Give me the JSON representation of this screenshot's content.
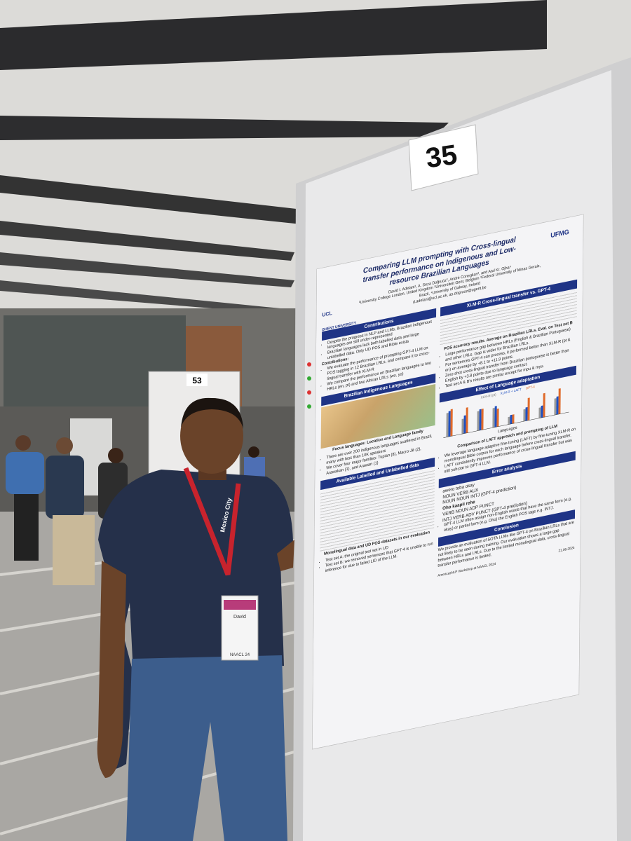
{
  "board_number": "35",
  "back_board_number": "53",
  "lanyard_text": "Mexico City",
  "badge": {
    "name": "David",
    "event": "NAACL 24"
  },
  "poster": {
    "title": "Comparing LLM prompting with Cross-lingual transfer performance on Indigenous and Low-resource Brazilian Languages",
    "authors": "David I. Adelani¹, A. Seza Doğruöz², André Coneglian³, and Atul Kr. Ojha⁴",
    "affiliations": "¹University College London, United Kingdom ²Universiteit Gent, Belgium ³Federal University of Minas Gerais, Brazil, ⁴University of Galway, Ireland",
    "emails": "d.adelani@ucl.ac.uk, as.dogruoz@ugent.be",
    "logos": [
      "UCL",
      "GHENT UNIVERSITY",
      "UFMG"
    ],
    "left_sections": [
      {
        "heading": "Contributions",
        "items": [
          "Despite the progress in NLP and LLMs, Brazilian indigenous languages are still under-represented",
          "Brazilian languages lack both labelled data and large unlabelled data. Only UD POS and Bible exists",
          "Contributions:",
          "We evaluate the performance of prompting GPT-4 LLM on POS tagging in 12 Brazilian LRLs, and compare it to cross-lingual transfer with XLM-R",
          "We compare the performance on Brazilian languages to two HRLs (en, pt) and two African LRLs (wo, yo)"
        ]
      },
      {
        "heading": "Brazilian Indigenous Languages",
        "caption": "Focus languages: Location and Language family",
        "items": [
          "There are over 200 indigenous languages scattered in Brazil, many with less than 10K speakers",
          "We cover four major families: Tupian (8), Macro-Jê (2), Arawakan (1), and Arawan (1)"
        ]
      },
      {
        "heading": "Available Labelled and Unlabelled data",
        "caption": "Monolingual data and UD POS datasets in our evaluation",
        "items": [
          "Test set A: the original test set in UD",
          "Test set B: we removed sentences that GPT-4 is unable to run inference for due to failed LID of the LLM."
        ]
      }
    ],
    "right_sections": [
      {
        "heading": "XLM-R Cross-lingual transfer vs. GPT-4",
        "caption": "POS accuracy results. Average on Brazilian LRLs. Eval. on Test set B",
        "items": [
          "Large performance gap between HRLs (English & Brazilian Portuguese) and other LRLs. Gap is wider for Brazilian LRLs.",
          "For sentences GPT-4 can process, it performed better than XLM-R (pt & en) on average by +8.1 to +11.9 points.",
          "Zero-shot cross-lingual transfer from Brazilian portuguese is better than English by +3.8 points due to language contact.",
          "Test set A & B's results are similar except for mpu & myu."
        ]
      },
      {
        "heading": "Effect of Language adaptation",
        "legend": [
          "XLM-R (pt)",
          "XLM-R + LAFT",
          "GPT-4"
        ],
        "axis_label": "Languages",
        "caption": "Comparison of LAFT approach and prompting of LLM",
        "items": [
          "We leverage language adaptive fine-tuning (LAFT) by fine-tuning XLM-R on monolingual Bible corpus for each language before cross-lingual transfer.",
          "LAFT consistently improves performance of cross-lingual transfer but was still sub-par to GPT-4 LLM."
        ]
      },
      {
        "heading": "Error analysis",
        "examples": [
          "awero toba okay",
          "NOUN VERB AUX",
          "NOUN NOUN INTJ (GPT-4 prediction)",
          "Oho kaapii rehe",
          "VERB NOUN ADP PUNCT",
          "INTJ VERB ADV PUNCT (GPT-4 prediction)"
        ],
        "items": [
          "GPT-4 LLM often assign non-English words that have the same form (e.g. okay) or partial form (e.g. Oho) the English POS tags e.g. INTJ."
        ]
      },
      {
        "heading": "Conclusion",
        "items": [
          "We provide an evaluation of SOTA LLMs like GPT-4 on Brazilian LRLs that are not likely to be seen during training. Our evaluation shows a large gap between HRLs and LRLs. Due to the limited monolingual data, cross-lingual transfer performance is limited."
        ]
      }
    ],
    "footer": "AmericasNLP Workshop at NAACL 2024",
    "date": "21.06.2024"
  }
}
